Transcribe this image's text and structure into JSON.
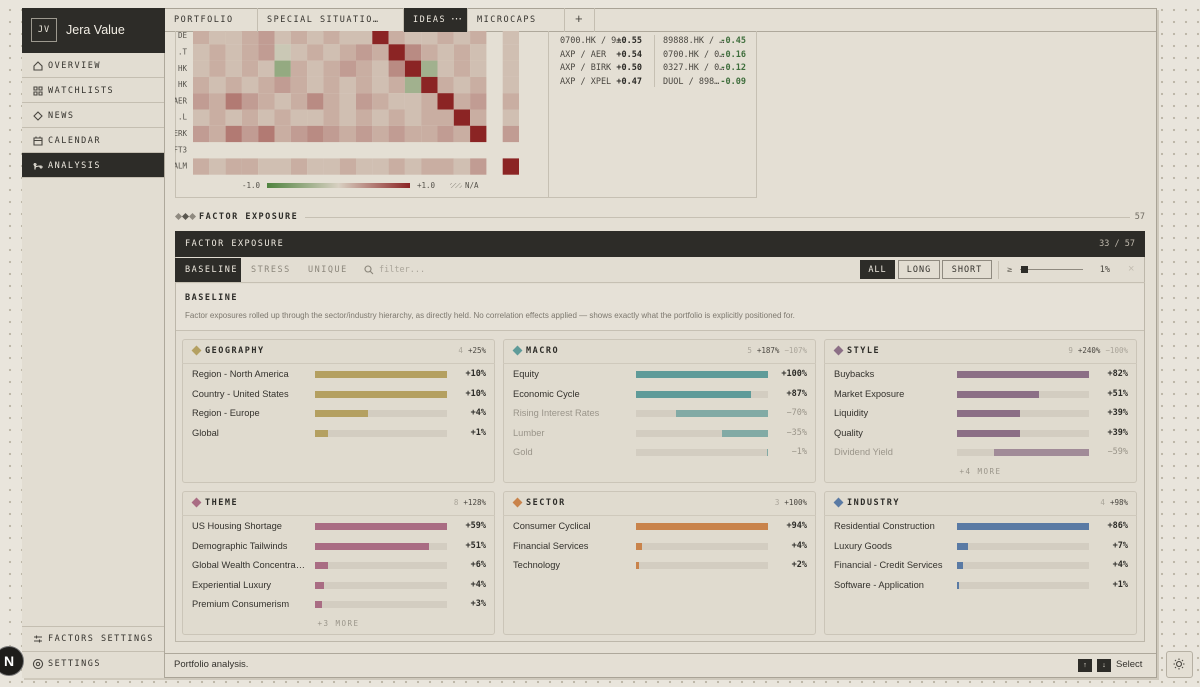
{
  "app": {
    "logo": "JV",
    "name": "Jera Value"
  },
  "nav": [
    {
      "label": "OVERVIEW"
    },
    {
      "label": "WATCHLISTS"
    },
    {
      "label": "NEWS"
    },
    {
      "label": "CALENDAR"
    },
    {
      "label": "ANALYSIS",
      "active": true
    }
  ],
  "nav_bottom": [
    "FACTORS SETTINGS",
    "SETTINGS"
  ],
  "tabs": [
    {
      "label": "PORTFOLIO"
    },
    {
      "label": "SPECIAL SITUATIO…"
    },
    {
      "label": "IDEAS",
      "menu": "⋯",
      "active": true
    },
    {
      "label": "MICROCAPS"
    }
  ],
  "add_tab": "+",
  "heatmap": {
    "row_labels": [
      "DE",
      ".T",
      "HK",
      "HK",
      "AER",
      ".L",
      "ERK",
      "FT3",
      "ALM"
    ],
    "cells": [
      [
        0.2,
        0.1,
        0.1,
        0.2,
        0.3,
        0.1,
        0.2,
        0.1,
        0.2,
        0.1,
        0.1,
        1,
        0.2,
        0.1,
        0.1,
        0.2,
        0.1,
        0.2,
        null,
        0.1
      ],
      [
        0.1,
        0.2,
        0.1,
        0.2,
        0.3,
        -0.1,
        0.1,
        0.2,
        0.1,
        0.2,
        0.3,
        0.2,
        1,
        0.4,
        0.2,
        0.1,
        0.2,
        0.1,
        null,
        0.1
      ],
      [
        0.1,
        0.2,
        0.1,
        0.2,
        0.1,
        -0.5,
        0.2,
        0.1,
        0.2,
        0.3,
        0.2,
        0.1,
        0.4,
        1,
        -0.4,
        0.1,
        0.2,
        0.1,
        null,
        0.1
      ],
      [
        0.2,
        0.1,
        0.2,
        0.1,
        0.2,
        0.3,
        0.2,
        0.1,
        0.2,
        0.1,
        0.2,
        0.1,
        0.2,
        -0.4,
        1,
        0.2,
        0.1,
        0.2,
        null,
        0.1
      ],
      [
        0.3,
        0.2,
        0.5,
        0.3,
        0.2,
        0.1,
        0.2,
        0.4,
        0.2,
        0.1,
        0.3,
        0.2,
        0.1,
        0.1,
        0.2,
        1,
        0.2,
        0.3,
        null,
        0.2
      ],
      [
        0.1,
        0.2,
        0.1,
        0.2,
        0.1,
        0.2,
        0.1,
        0.1,
        0.2,
        0.1,
        0.2,
        0.1,
        0.2,
        0.1,
        0.2,
        0.2,
        1,
        0.2,
        null,
        0.1
      ],
      [
        0.3,
        0.2,
        0.5,
        0.3,
        0.5,
        0.2,
        0.3,
        0.4,
        0.3,
        0.2,
        0.3,
        0.2,
        0.3,
        0.2,
        0.2,
        0.3,
        0.2,
        1,
        null,
        0.3
      ],
      [
        null,
        null,
        null,
        null,
        null,
        null,
        null,
        null,
        null,
        null,
        null,
        null,
        null,
        null,
        null,
        null,
        null,
        null,
        null,
        null
      ],
      [
        0.2,
        0.1,
        0.2,
        0.2,
        0.1,
        0.1,
        0.2,
        0.1,
        0.1,
        0.2,
        0.1,
        0.1,
        0.2,
        0.1,
        0.2,
        0.2,
        0.1,
        0.3,
        null,
        1
      ]
    ],
    "scale": [
      {
        "value": -1,
        "label": "-1.0"
      },
      {
        "value": 1,
        "label": "+1.0"
      }
    ],
    "na_label": "N/A"
  },
  "pairs": {
    "positive": [
      {
        "pair": "0700.HK / 9…",
        "value": "+0.55"
      },
      {
        "pair": "AXP / AER",
        "value": "+0.54"
      },
      {
        "pair": "AXP / BIRK",
        "value": "+0.50"
      },
      {
        "pair": "AXP / XPEL",
        "value": "+0.47"
      }
    ],
    "negative": [
      {
        "pair": "89888.HK / …",
        "value": "-0.45"
      },
      {
        "pair": "0700.HK / 0…",
        "value": "-0.16"
      },
      {
        "pair": "0327.HK / 0…",
        "value": "-0.12"
      },
      {
        "pair": "DUOL / 898…",
        "value": "-0.09"
      }
    ]
  },
  "section": {
    "title": "FACTOR EXPOSURE",
    "count": "57"
  },
  "panel": {
    "title": "FACTOR EXPOSURE",
    "count": "33 / 57",
    "tabs": [
      {
        "label": "BASELINE",
        "active": true
      },
      {
        "label": "STRESS"
      },
      {
        "label": "UNIQUE"
      }
    ],
    "filter_placeholder": "filter...",
    "sides": [
      {
        "label": "ALL",
        "active": true
      },
      {
        "label": "LONG"
      },
      {
        "label": "SHORT"
      }
    ],
    "threshold_symbol": "≥",
    "threshold": "1%",
    "clear": "×",
    "heading": "BASELINE",
    "description": "Factor exposures rolled up through the sector/industry hierarchy, as directly held. No correlation effects applied — shows exactly what the portfolio is explicitly positioned for."
  },
  "cards": [
    {
      "title": "GEOGRAPHY",
      "color": "#b4a061",
      "count": "4",
      "positive": "+25%",
      "rows": [
        {
          "name": "Region - North America",
          "value": 10,
          "value_label": "+10%"
        },
        {
          "name": "Country - United States",
          "value": 10,
          "value_label": "+10%"
        },
        {
          "name": "Region - Europe",
          "value": 4,
          "value_label": "+4%"
        },
        {
          "name": "Global",
          "value": 1,
          "value_label": "+1%"
        }
      ]
    },
    {
      "title": "MACRO",
      "color": "#5f9b99",
      "count": "5",
      "positive": "+187%",
      "negative": "−107%",
      "rows": [
        {
          "name": "Equity",
          "value": 100,
          "value_label": "+100%"
        },
        {
          "name": "Economic Cycle",
          "value": 87,
          "value_label": "+87%"
        },
        {
          "name": "Rising Interest Rates",
          "value": -70,
          "value_label": "−70%"
        },
        {
          "name": "Lumber",
          "value": -35,
          "value_label": "−35%"
        },
        {
          "name": "Gold",
          "value": -1,
          "value_label": "−1%"
        }
      ]
    },
    {
      "title": "STYLE",
      "color": "#8c6f86",
      "count": "9",
      "positive": "+240%",
      "negative": "−100%",
      "more": "+4 MORE",
      "rows": [
        {
          "name": "Buybacks",
          "value": 82,
          "value_label": "+82%"
        },
        {
          "name": "Market Exposure",
          "value": 51,
          "value_label": "+51%"
        },
        {
          "name": "Liquidity",
          "value": 39,
          "value_label": "+39%"
        },
        {
          "name": "Quality",
          "value": 39,
          "value_label": "+39%"
        },
        {
          "name": "Dividend Yield",
          "value": -59,
          "value_label": "−59%"
        }
      ]
    },
    {
      "title": "THEME",
      "color": "#a96c83",
      "count": "8",
      "positive": "+128%",
      "more": "+3 MORE",
      "rows": [
        {
          "name": "US Housing Shortage",
          "value": 59,
          "value_label": "+59%"
        },
        {
          "name": "Demographic Tailwinds",
          "value": 51,
          "value_label": "+51%"
        },
        {
          "name": "Global Wealth Concentra…",
          "value": 6,
          "value_label": "+6%"
        },
        {
          "name": "Experiential Luxury",
          "value": 4,
          "value_label": "+4%"
        },
        {
          "name": "Premium Consumerism",
          "value": 3,
          "value_label": "+3%"
        }
      ]
    },
    {
      "title": "SECTOR",
      "color": "#c9834b",
      "count": "3",
      "positive": "+100%",
      "rows": [
        {
          "name": "Consumer Cyclical",
          "value": 94,
          "value_label": "+94%"
        },
        {
          "name": "Financial Services",
          "value": 4,
          "value_label": "+4%"
        },
        {
          "name": "Technology",
          "value": 2,
          "value_label": "+2%"
        }
      ]
    },
    {
      "title": "INDUSTRY",
      "color": "#5a7aa4",
      "count": "4",
      "positive": "+98%",
      "rows": [
        {
          "name": "Residential Construction",
          "value": 86,
          "value_label": "+86%"
        },
        {
          "name": "Luxury Goods",
          "value": 7,
          "value_label": "+7%"
        },
        {
          "name": "Financial - Credit Services",
          "value": 4,
          "value_label": "+4%"
        },
        {
          "name": "Software - Application",
          "value": 1,
          "value_label": "+1%"
        }
      ]
    }
  ],
  "status": {
    "text": "Portfolio analysis.",
    "keys": [
      "↑",
      "↓"
    ],
    "hint": "Select"
  },
  "badge": "N"
}
